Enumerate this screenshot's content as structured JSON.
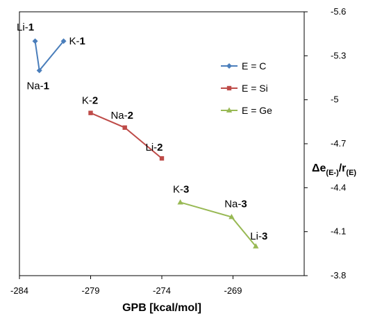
{
  "chart_data": {
    "type": "line",
    "xlabel": "GPB [kcal/mol]",
    "ylabel": "Δe(E-)/r(E)",
    "xlim": [
      -284,
      -264
    ],
    "ylim": [
      -5.6,
      -3.8
    ],
    "y_axis_reversed": true,
    "y_axis_position": "right",
    "x_ticks": [
      "-284",
      "-279",
      "-274",
      "-269"
    ],
    "y_ticks": [
      "-5.6",
      "-5.3",
      "-5",
      "-4.7",
      "-4.4",
      "-4.1",
      "-3.8"
    ],
    "legend_position": "right, upper-middle",
    "grid": false,
    "series": [
      {
        "name": "E = C",
        "color": "#4a7ebb",
        "marker": "diamond",
        "points": [
          {
            "x": -282.9,
            "y": -5.4,
            "label": "Li-",
            "label_bold": "1"
          },
          {
            "x": -282.6,
            "y": -5.2,
            "label": "Na-",
            "label_bold": "1"
          },
          {
            "x": -280.9,
            "y": -5.4,
            "label": "K-",
            "label_bold": "1"
          }
        ]
      },
      {
        "name": "E = Si",
        "color": "#be4b48",
        "marker": "square",
        "points": [
          {
            "x": -279.0,
            "y": -4.91,
            "label": "K-",
            "label_bold": "2"
          },
          {
            "x": -276.6,
            "y": -4.81,
            "label": "Na-",
            "label_bold": "2"
          },
          {
            "x": -274.0,
            "y": -4.6,
            "label": "Li-",
            "label_bold": "2"
          }
        ]
      },
      {
        "name": "E = Ge",
        "color": "#98b954",
        "marker": "triangle",
        "points": [
          {
            "x": -272.7,
            "y": -4.3,
            "label": "K-",
            "label_bold": "3"
          },
          {
            "x": -269.1,
            "y": -4.2,
            "label": "Na-",
            "label_bold": "3"
          },
          {
            "x": -267.4,
            "y": -4.0,
            "label": "Li-",
            "label_bold": "3"
          }
        ]
      }
    ]
  }
}
